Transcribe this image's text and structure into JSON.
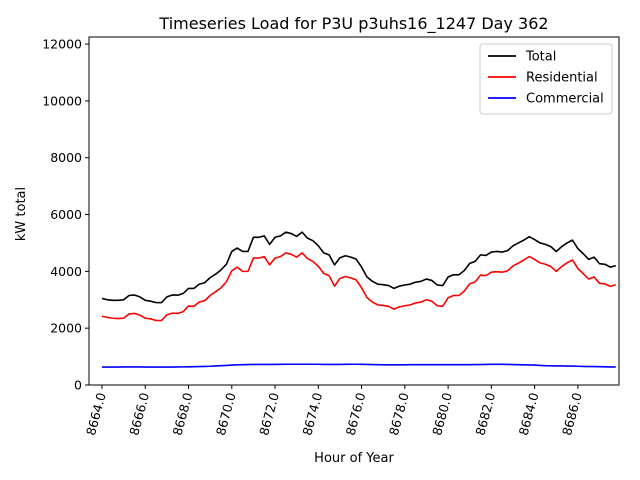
{
  "chart_data": {
    "type": "line",
    "title": "Timeseries Load for P3U p3uhs16_1247  Day 362",
    "xlabel": "Hour of Year",
    "ylabel": "kW total",
    "xlim": [
      8663.4,
      8687.9
    ],
    "ylim": [
      0,
      12250
    ],
    "x_start": 8664.0,
    "x_step": 0.25,
    "x_ticks": [
      8664,
      8666,
      8668,
      8670,
      8672,
      8674,
      8676,
      8678,
      8680,
      8682,
      8684,
      8686
    ],
    "x_tick_labels": [
      "8664.0",
      "8666.0",
      "8668.0",
      "8670.0",
      "8672.0",
      "8674.0",
      "8676.0",
      "8678.0",
      "8680.0",
      "8682.0",
      "8684.0",
      "8686.0"
    ],
    "y_ticks": [
      0,
      2000,
      4000,
      6000,
      8000,
      10000,
      12000
    ],
    "y_tick_labels": [
      "0",
      "2000",
      "4000",
      "6000",
      "8000",
      "10000",
      "12000"
    ],
    "grid": false,
    "legend_position": "top-right",
    "series": [
      {
        "name": "Total",
        "color": "#000000",
        "values": [
          3050,
          3000,
          2980,
          2980,
          3000,
          3150,
          3170,
          3100,
          2980,
          2950,
          2900,
          2900,
          3100,
          3170,
          3160,
          3220,
          3400,
          3400,
          3550,
          3600,
          3780,
          3900,
          4050,
          4250,
          4700,
          4820,
          4700,
          4700,
          5200,
          5200,
          5250,
          4950,
          5200,
          5250,
          5380,
          5330,
          5230,
          5380,
          5170,
          5080,
          4900,
          4650,
          4580,
          4230,
          4480,
          4550,
          4500,
          4430,
          4150,
          3800,
          3650,
          3550,
          3530,
          3500,
          3400,
          3480,
          3520,
          3550,
          3620,
          3650,
          3730,
          3680,
          3520,
          3500,
          3800,
          3880,
          3880,
          4030,
          4280,
          4350,
          4580,
          4560,
          4680,
          4700,
          4680,
          4730,
          4900,
          5000,
          5100,
          5220,
          5120,
          5000,
          4950,
          4870,
          4700,
          4870,
          5000,
          5100,
          4800,
          4620,
          4420,
          4500,
          4270,
          4250,
          4150,
          4200
        ]
      },
      {
        "name": "Residential",
        "color": "#ff0000",
        "values": [
          2420,
          2380,
          2350,
          2340,
          2350,
          2500,
          2520,
          2460,
          2350,
          2330,
          2270,
          2270,
          2470,
          2530,
          2520,
          2580,
          2780,
          2770,
          2920,
          2970,
          3150,
          3280,
          3420,
          3630,
          4020,
          4150,
          4000,
          4000,
          4470,
          4470,
          4520,
          4230,
          4470,
          4520,
          4650,
          4600,
          4500,
          4650,
          4450,
          4350,
          4180,
          3930,
          3850,
          3480,
          3750,
          3820,
          3770,
          3700,
          3420,
          3080,
          2920,
          2820,
          2800,
          2770,
          2670,
          2750,
          2790,
          2820,
          2890,
          2920,
          3000,
          2950,
          2790,
          2770,
          3070,
          3150,
          3150,
          3310,
          3560,
          3630,
          3870,
          3850,
          3970,
          3990,
          3970,
          4020,
          4190,
          4290,
          4400,
          4520,
          4420,
          4300,
          4250,
          4170,
          4000,
          4170,
          4300,
          4400,
          4100,
          3920,
          3730,
          3800,
          3580,
          3560,
          3470,
          3530
        ]
      },
      {
        "name": "Commercial",
        "color": "#0000ff",
        "values": [
          630,
          630,
          630,
          630,
          635,
          635,
          635,
          635,
          630,
          630,
          630,
          630,
          630,
          632,
          635,
          638,
          640,
          645,
          650,
          655,
          660,
          670,
          680,
          690,
          700,
          710,
          715,
          720,
          725,
          725,
          725,
          725,
          725,
          728,
          730,
          730,
          730,
          730,
          730,
          730,
          730,
          725,
          725,
          725,
          725,
          728,
          730,
          730,
          728,
          725,
          720,
          715,
          712,
          710,
          710,
          712,
          712,
          714,
          715,
          716,
          716,
          716,
          716,
          716,
          716,
          716,
          716,
          716,
          716,
          718,
          720,
          725,
          728,
          728,
          728,
          725,
          720,
          715,
          710,
          705,
          700,
          690,
          680,
          675,
          670,
          670,
          665,
          665,
          660,
          655,
          650,
          650,
          645,
          640,
          635,
          630
        ]
      }
    ]
  }
}
